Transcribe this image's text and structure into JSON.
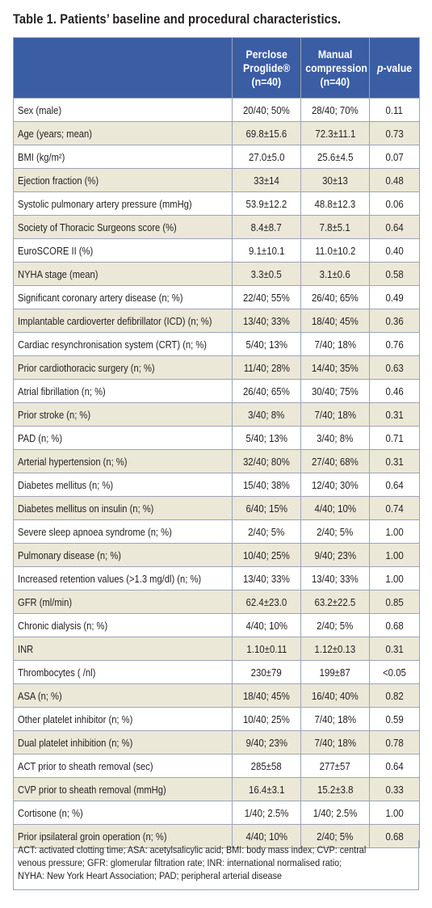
{
  "title": "Table 1. Patients’ baseline and procedural characteristics.",
  "header": {
    "col1": "",
    "col2_line1": "Perclose",
    "col2_line2": "Proglide®",
    "col2_line3": "(n=40)",
    "col3_line1": "Manual",
    "col3_line2": "compression",
    "col3_line3": "(n=40)",
    "col4_italic": "p",
    "col4_rest": "-value"
  },
  "rows": [
    {
      "label": "Sex (male)",
      "perclose": "20/40; 50%",
      "manual": "28/40; 70%",
      "p": "0.11"
    },
    {
      "label": "Age (years; mean)",
      "perclose": "69.8±15.6",
      "manual": "72.3±11.1",
      "p": "0.73"
    },
    {
      "label": "BMI (kg/m²)",
      "perclose": "27.0±5.0",
      "manual": "25.6±4.5",
      "p": "0.07"
    },
    {
      "label": "Ejection fraction (%)",
      "perclose": "33±14",
      "manual": "30±13",
      "p": "0.48"
    },
    {
      "label": "Systolic pulmonary artery pressure (mmHg)",
      "perclose": "53.9±12.2",
      "manual": "48.8±12.3",
      "p": "0.06"
    },
    {
      "label": "Society of Thoracic Surgeons score (%)",
      "perclose": "8.4±8.7",
      "manual": "7.8±5.1",
      "p": "0.64"
    },
    {
      "label": "EuroSCORE II (%)",
      "perclose": "9.1±10.1",
      "manual": "11.0±10.2",
      "p": "0.40"
    },
    {
      "label": "NYHA stage (mean)",
      "perclose": "3.3±0.5",
      "manual": "3.1±0.6",
      "p": "0.58"
    },
    {
      "label": "Significant coronary artery disease (n; %)",
      "perclose": "22/40; 55%",
      "manual": "26/40; 65%",
      "p": "0.49"
    },
    {
      "label": "Implantable cardioverter defibrillator (ICD) (n; %)",
      "perclose": "13/40; 33%",
      "manual": "18/40; 45%",
      "p": "0.36"
    },
    {
      "label": "Cardiac resynchronisation system (CRT) (n; %)",
      "perclose": "5/40; 13%",
      "manual": "7/40; 18%",
      "p": "0.76"
    },
    {
      "label": "Prior cardiothoracic surgery (n; %)",
      "perclose": "11/40; 28%",
      "manual": "14/40; 35%",
      "p": "0.63"
    },
    {
      "label": "Atrial fibrillation (n; %)",
      "perclose": "26/40; 65%",
      "manual": "30/40; 75%",
      "p": "0.46"
    },
    {
      "label": "Prior stroke (n; %)",
      "perclose": "3/40; 8%",
      "manual": "7/40; 18%",
      "p": "0.31"
    },
    {
      "label": "PAD (n; %)",
      "perclose": "5/40; 13%",
      "manual": "3/40; 8%",
      "p": "0.71"
    },
    {
      "label": "Arterial hypertension (n; %)",
      "perclose": "32/40; 80%",
      "manual": "27/40; 68%",
      "p": "0.31"
    },
    {
      "label": "Diabetes mellitus (n; %)",
      "perclose": "15/40; 38%",
      "manual": "12/40; 30%",
      "p": "0.64"
    },
    {
      "label": "Diabetes mellitus on insulin (n; %)",
      "perclose": "6/40; 15%",
      "manual": "4/40; 10%",
      "p": "0.74"
    },
    {
      "label": "Severe sleep apnoea syndrome (n; %)",
      "perclose": "2/40; 5%",
      "manual": "2/40; 5%",
      "p": "1.00"
    },
    {
      "label": "Pulmonary disease (n; %)",
      "perclose": "10/40; 25%",
      "manual": "9/40; 23%",
      "p": "1.00"
    },
    {
      "label": "Increased retention values (>1.3 mg/dl) (n; %)",
      "perclose": "13/40; 33%",
      "manual": "13/40; 33%",
      "p": "1.00"
    },
    {
      "label": "GFR (ml/min)",
      "perclose": "62.4±23.0",
      "manual": "63.2±22.5",
      "p": "0.85"
    },
    {
      "label": "Chronic dialysis (n; %)",
      "perclose": "4/40; 10%",
      "manual": "2/40; 5%",
      "p": "0.68"
    },
    {
      "label": "INR",
      "perclose": "1.10±0.11",
      "manual": "1.12±0.13",
      "p": "0.31"
    },
    {
      "label": "Thrombocytes ( /nl)",
      "perclose": "230±79",
      "manual": "199±87",
      "p": "<0.05"
    },
    {
      "label": "ASA (n; %)",
      "perclose": "18/40; 45%",
      "manual": "16/40; 40%",
      "p": "0.82"
    },
    {
      "label": "Other platelet inhibitor (n; %)",
      "perclose": "10/40; 25%",
      "manual": "7/40; 18%",
      "p": "0.59"
    },
    {
      "label": "Dual platelet inhibition (n; %)",
      "perclose": "9/40; 23%",
      "manual": "7/40; 18%",
      "p": "0.78"
    },
    {
      "label": "ACT prior to sheath removal (sec)",
      "perclose": "285±58",
      "manual": "277±57",
      "p": "0.64"
    },
    {
      "label": "CVP prior to sheath removal (mmHg)",
      "perclose": "16.4±3.1",
      "manual": "15.2±3.8",
      "p": "0.33"
    },
    {
      "label": "Cortisone (n; %)",
      "perclose": "1/40; 2.5%",
      "manual": "1/40; 2.5%",
      "p": "1.00"
    },
    {
      "label": "Prior ipsilateral groin operation (n; %)",
      "perclose": "4/40; 10%",
      "manual": "2/40; 5%",
      "p": "0.68"
    }
  ],
  "footnote": {
    "line1": "ACT: activated clotting time; ASA: acetylsalicylic acid; BMI: body mass index; CVP: central",
    "line2": "venous pressure; GFR: glomerular filtration rate; INR: international normalised ratio;",
    "line3": "NYHA: New York Heart Association; PAD; peripheral arterial disease"
  },
  "colors": {
    "header_bg": "#3a5da4",
    "row_alt_bg": "#ece8d8",
    "border": "#9aa5b4"
  }
}
